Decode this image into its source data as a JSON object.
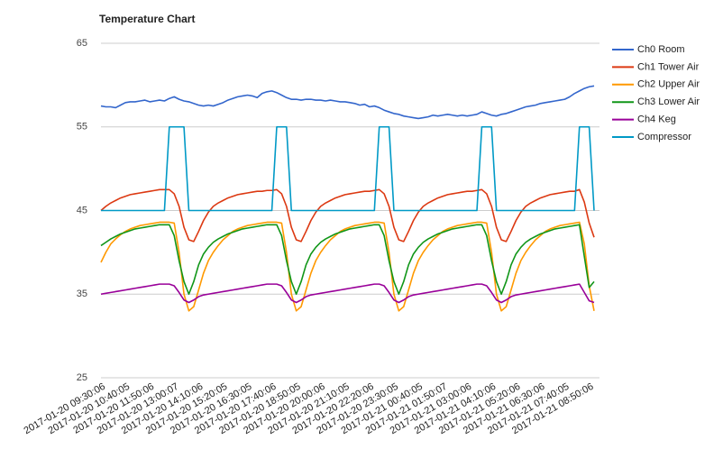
{
  "chart_data": {
    "type": "line",
    "title": "Temperature Chart",
    "categories": [
      "2017-01-20 09:30:06",
      null,
      null,
      null,
      null,
      "2017-01-20 10:40:05",
      null,
      null,
      null,
      null,
      "2017-01-20 11:50:06",
      null,
      null,
      null,
      null,
      "2017-01-20 13:00:07",
      null,
      null,
      null,
      null,
      "2017-01-20 14:10:06",
      null,
      null,
      null,
      null,
      "2017-01-20 15:20:05",
      null,
      null,
      null,
      null,
      "2017-01-20 16:30:05",
      null,
      null,
      null,
      null,
      "2017-01-20 17:40:06",
      null,
      null,
      null,
      null,
      "2017-01-20 18:50:05",
      null,
      null,
      null,
      null,
      "2017-01-20 20:00:06",
      null,
      null,
      null,
      null,
      "2017-01-20 21:10:05",
      null,
      null,
      null,
      null,
      "2017-01-20 22:20:06",
      null,
      null,
      null,
      null,
      "2017-01-20 23:30:05",
      null,
      null,
      null,
      null,
      "2017-01-21 00:40:05",
      null,
      null,
      null,
      null,
      "2017-01-21 01:50:07",
      null,
      null,
      null,
      null,
      "2017-01-21 03:00:06",
      null,
      null,
      null,
      null,
      "2017-01-21 04:10:06",
      null,
      null,
      null,
      null,
      "2017-01-21 05:20:06",
      null,
      null,
      null,
      null,
      "2017-01-21 06:30:06",
      null,
      null,
      null,
      null,
      "2017-01-21 07:40:05",
      null,
      null,
      null,
      null,
      "2017-01-21 08:50:06",
      null
    ],
    "series": [
      {
        "name": "Ch0 Room",
        "color": "#3366cc",
        "values": [
          57.5,
          57.4,
          57.4,
          57.3,
          57.6,
          57.9,
          58,
          58,
          58.1,
          58.2,
          58,
          58.1,
          58.2,
          58.1,
          58.4,
          58.6,
          58.3,
          58.1,
          58,
          57.8,
          57.6,
          57.5,
          57.6,
          57.5,
          57.7,
          57.9,
          58.2,
          58.4,
          58.6,
          58.7,
          58.8,
          58.7,
          58.5,
          59,
          59.2,
          59.3,
          59.1,
          58.8,
          58.5,
          58.3,
          58.3,
          58.2,
          58.3,
          58.3,
          58.2,
          58.2,
          58.1,
          58.2,
          58.1,
          58,
          58,
          57.9,
          57.8,
          57.6,
          57.7,
          57.4,
          57.5,
          57.3,
          57,
          56.8,
          56.6,
          56.5,
          56.3,
          56.2,
          56.1,
          56,
          56.1,
          56.2,
          56.4,
          56.3,
          56.4,
          56.5,
          56.4,
          56.3,
          56.4,
          56.3,
          56.4,
          56.5,
          56.8,
          56.6,
          56.4,
          56.3,
          56.5,
          56.6,
          56.8,
          57,
          57.2,
          57.4,
          57.5,
          57.6,
          57.8,
          57.9,
          58,
          58.1,
          58.2,
          58.3,
          58.6,
          59,
          59.3,
          59.6,
          59.8,
          59.9
        ]
      },
      {
        "name": "Ch1 Tower Air",
        "color": "#dc3912",
        "values": [
          45,
          45.5,
          45.9,
          46.2,
          46.5,
          46.7,
          46.9,
          47,
          47.1,
          47.2,
          47.3,
          47.4,
          47.5,
          47.5,
          47.5,
          47,
          45.5,
          43,
          41.5,
          41.3,
          42.5,
          43.8,
          44.8,
          45.5,
          45.9,
          46.2,
          46.5,
          46.7,
          46.9,
          47,
          47.1,
          47.2,
          47.3,
          47.3,
          47.4,
          47.4,
          47.5,
          47,
          45.5,
          43,
          41.5,
          41.3,
          42.5,
          43.8,
          44.8,
          45.5,
          45.9,
          46.2,
          46.5,
          46.7,
          46.9,
          47,
          47.1,
          47.2,
          47.3,
          47.3,
          47.4,
          47.5,
          47,
          45.5,
          43,
          41.5,
          41.3,
          42.5,
          43.8,
          44.8,
          45.5,
          45.9,
          46.2,
          46.5,
          46.7,
          46.9,
          47,
          47.1,
          47.2,
          47.3,
          47.3,
          47.4,
          47.5,
          47,
          45.5,
          43,
          41.5,
          41.3,
          42.5,
          43.8,
          44.8,
          45.5,
          45.9,
          46.2,
          46.5,
          46.7,
          46.9,
          47,
          47.1,
          47.2,
          47.3,
          47.3,
          47.5,
          46,
          43.5,
          41.8
        ]
      },
      {
        "name": "Ch2 Upper Air",
        "color": "#ff9900",
        "values": [
          38.8,
          40,
          41,
          41.6,
          42.1,
          42.5,
          42.8,
          43,
          43.2,
          43.3,
          43.4,
          43.5,
          43.6,
          43.6,
          43.6,
          43.5,
          40,
          35,
          33,
          33.5,
          35.5,
          37.5,
          39,
          40,
          40.8,
          41.5,
          42,
          42.5,
          42.8,
          43,
          43.2,
          43.3,
          43.4,
          43.5,
          43.6,
          43.6,
          43.6,
          43.5,
          40,
          35,
          33,
          33.5,
          35.5,
          37.5,
          39,
          40,
          40.8,
          41.5,
          42,
          42.5,
          42.8,
          43,
          43.2,
          43.3,
          43.4,
          43.5,
          43.6,
          43.6,
          43.5,
          40,
          35,
          33,
          33.5,
          35.5,
          37.5,
          39,
          40,
          40.8,
          41.5,
          42,
          42.5,
          42.8,
          43,
          43.2,
          43.3,
          43.4,
          43.5,
          43.6,
          43.6,
          43.5,
          40,
          35,
          33,
          33.5,
          35.5,
          37.5,
          39,
          40,
          40.8,
          41.5,
          42,
          42.5,
          42.8,
          43,
          43.2,
          43.3,
          43.4,
          43.5,
          43.6,
          41,
          36,
          33
        ]
      },
      {
        "name": "Ch3 Lower Air",
        "color": "#109618",
        "values": [
          40.8,
          41.2,
          41.6,
          41.9,
          42.2,
          42.4,
          42.6,
          42.8,
          42.9,
          43,
          43.1,
          43.2,
          43.3,
          43.3,
          43.3,
          42,
          39,
          36.5,
          35,
          36.5,
          38.5,
          39.8,
          40.6,
          41.2,
          41.6,
          41.9,
          42.2,
          42.4,
          42.6,
          42.8,
          42.9,
          43,
          43.1,
          43.2,
          43.3,
          43.3,
          43.3,
          42,
          39,
          36.5,
          35,
          36.5,
          38.5,
          39.8,
          40.6,
          41.2,
          41.6,
          41.9,
          42.2,
          42.4,
          42.6,
          42.8,
          42.9,
          43,
          43.1,
          43.2,
          43.3,
          43.3,
          42,
          39,
          36.5,
          35,
          36.5,
          38.5,
          39.8,
          40.6,
          41.2,
          41.6,
          41.9,
          42.2,
          42.4,
          42.6,
          42.8,
          42.9,
          43,
          43.1,
          43.2,
          43.3,
          43.3,
          42,
          39,
          36.5,
          35,
          36.5,
          38.5,
          39.8,
          40.6,
          41.2,
          41.6,
          41.9,
          42.2,
          42.4,
          42.6,
          42.8,
          42.9,
          43,
          43.1,
          43.2,
          43.3,
          39.5,
          35.8,
          36.5
        ]
      },
      {
        "name": "Ch4 Keg",
        "color": "#990099",
        "values": [
          35,
          35.1,
          35.2,
          35.3,
          35.4,
          35.5,
          35.6,
          35.7,
          35.8,
          35.9,
          36,
          36.1,
          36.2,
          36.2,
          36.2,
          36,
          35.2,
          34.3,
          34,
          34.3,
          34.7,
          34.9,
          35,
          35.1,
          35.2,
          35.3,
          35.4,
          35.5,
          35.6,
          35.7,
          35.8,
          35.9,
          36,
          36.1,
          36.2,
          36.2,
          36.2,
          36,
          35.2,
          34.3,
          34,
          34.3,
          34.7,
          34.9,
          35,
          35.1,
          35.2,
          35.3,
          35.4,
          35.5,
          35.6,
          35.7,
          35.8,
          35.9,
          36,
          36.1,
          36.2,
          36.2,
          36,
          35.2,
          34.3,
          34,
          34.3,
          34.7,
          34.9,
          35,
          35.1,
          35.2,
          35.3,
          35.4,
          35.5,
          35.6,
          35.7,
          35.8,
          35.9,
          36,
          36.1,
          36.2,
          36.2,
          36,
          35.2,
          34.3,
          34,
          34.3,
          34.7,
          34.9,
          35,
          35.1,
          35.2,
          35.3,
          35.4,
          35.5,
          35.6,
          35.7,
          35.8,
          35.9,
          36,
          36.1,
          36.2,
          35.2,
          34.2,
          34
        ]
      },
      {
        "name": "Compressor",
        "color": "#0099c6",
        "values": [
          45,
          45,
          45,
          45,
          45,
          45,
          45,
          45,
          45,
          45,
          45,
          45,
          45,
          45,
          55,
          55,
          55,
          55,
          45,
          45,
          45,
          45,
          45,
          45,
          45,
          45,
          45,
          45,
          45,
          45,
          45,
          45,
          45,
          45,
          45,
          45,
          55,
          55,
          55,
          45,
          45,
          45,
          45,
          45,
          45,
          45,
          45,
          45,
          45,
          45,
          45,
          45,
          45,
          45,
          45,
          45,
          45,
          55,
          55,
          55,
          45,
          45,
          45,
          45,
          45,
          45,
          45,
          45,
          45,
          45,
          45,
          45,
          45,
          45,
          45,
          45,
          45,
          45,
          55,
          55,
          55,
          45,
          45,
          45,
          45,
          45,
          45,
          45,
          45,
          45,
          45,
          45,
          45,
          45,
          45,
          45,
          45,
          45,
          55,
          55,
          55,
          45
        ]
      }
    ],
    "ylim": [
      25,
      65
    ],
    "yticks": [
      25,
      35,
      45,
      55,
      65
    ],
    "grid": true,
    "legend": "right"
  }
}
